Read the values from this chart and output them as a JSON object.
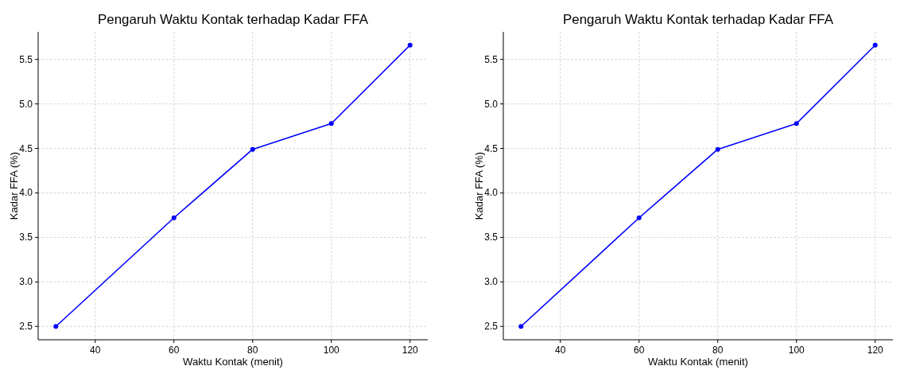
{
  "chart_data": [
    {
      "type": "line",
      "title": "Pengaruh Waktu Kontak terhadap Kadar FFA",
      "xlabel": "Waktu Kontak (menit)",
      "ylabel": "Kadar FFA (%)",
      "x": [
        30,
        60,
        80,
        100,
        120
      ],
      "series": [
        {
          "color": "#0000ff",
          "values": [
            2.5,
            3.72,
            4.49,
            4.78,
            5.66
          ]
        }
      ],
      "xlim": [
        25.5,
        124.5
      ],
      "xticks": [
        40,
        60,
        80,
        100,
        120
      ],
      "ylim": [
        2.35,
        5.81
      ],
      "yticks": [
        {
          "value": 2.5,
          "label": "2.5"
        },
        {
          "value": 3,
          "label": "3.0"
        },
        {
          "value": 3.5,
          "label": "3.5"
        },
        {
          "value": 4,
          "label": "4.0"
        },
        {
          "value": 4.5,
          "label": "4.5"
        },
        {
          "value": 5,
          "label": "5.0"
        },
        {
          "value": 5.5,
          "label": "5.5"
        }
      ],
      "grid": true,
      "marker": "circle",
      "line_style": "solid"
    },
    {
      "type": "line",
      "title": "Pengaruh Waktu Kontak terhadap Kadar FFA",
      "xlabel": "Waktu Kontak (menit)",
      "ylabel": "Kadar FFA (%)",
      "x": [
        30,
        60,
        80,
        100,
        120
      ],
      "series": [
        {
          "color": "#0000ff",
          "values": [
            2.5,
            3.72,
            4.49,
            4.78,
            5.66
          ]
        }
      ],
      "xlim": [
        25.5,
        124.5
      ],
      "xticks": [
        40,
        60,
        80,
        100,
        120
      ],
      "ylim": [
        2.35,
        5.81
      ],
      "yticks": [
        {
          "value": 2.5,
          "label": "2.5"
        },
        {
          "value": 3,
          "label": "3.0"
        },
        {
          "value": 3.5,
          "label": "3.5"
        },
        {
          "value": 4,
          "label": "4.0"
        },
        {
          "value": 4.5,
          "label": "4.5"
        },
        {
          "value": 5,
          "label": "5.0"
        },
        {
          "value": 5.5,
          "label": "5.5"
        }
      ],
      "grid": true,
      "marker": "circle",
      "line_style": "solid"
    }
  ]
}
